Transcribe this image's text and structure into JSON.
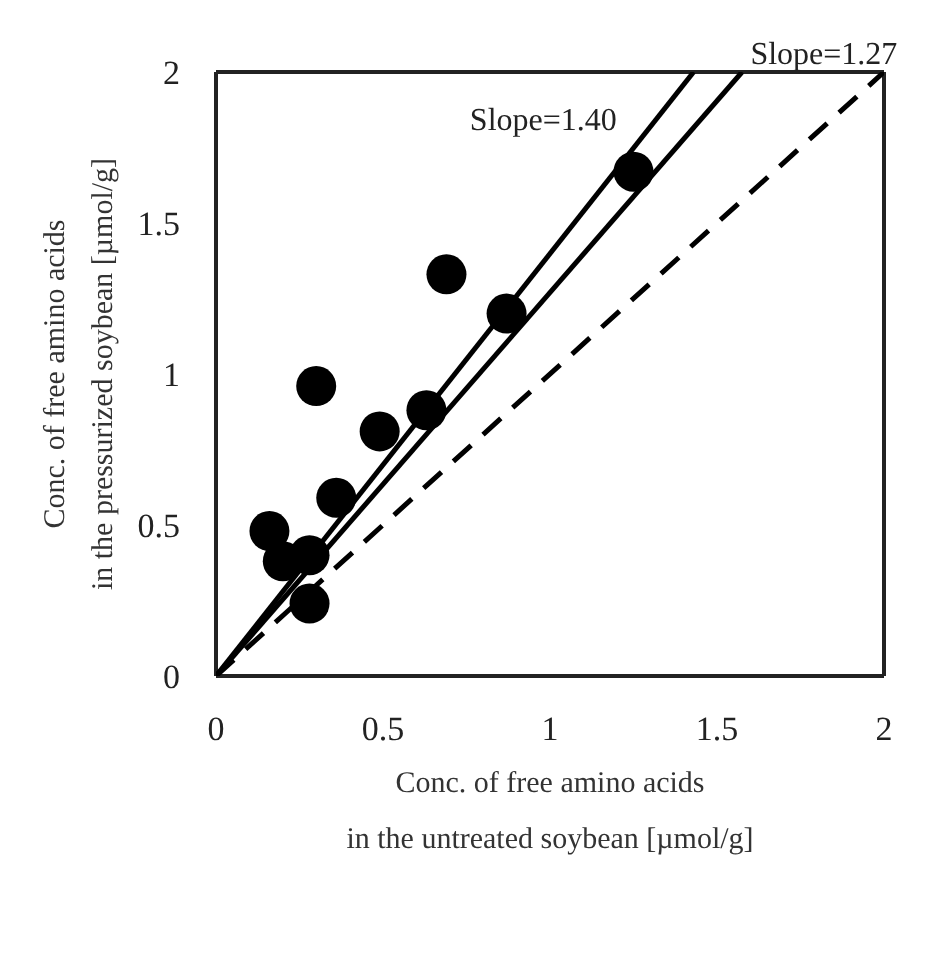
{
  "chart_data": {
    "type": "scatter",
    "xlabel": "Conc. of free amino acids\nin the untreated soybean [µmol/g]",
    "ylabel": "Conc. of free amino acids\nin the pressurized soybean [µmol/g]",
    "xlim": [
      0,
      2
    ],
    "ylim": [
      0,
      2
    ],
    "xticks": [
      0,
      0.5,
      1,
      1.5,
      2
    ],
    "yticks": [
      0,
      0.5,
      1,
      1.5,
      2
    ],
    "legend": false,
    "marker": "circle",
    "series": [
      {
        "color": "#000000",
        "x": [
          1.25,
          0.69,
          0.87,
          0.3,
          0.49,
          0.63,
          0.36,
          0.16,
          0.2,
          0.28,
          0.28
        ],
        "values": [
          1.67,
          1.33,
          1.2,
          0.96,
          0.81,
          0.88,
          0.59,
          0.48,
          0.38,
          0.4,
          0.24
        ]
      },
      {
        "type": "line",
        "color": "#000000",
        "x": [
          0,
          1.43
        ],
        "values": [
          0,
          2
        ],
        "marker": "none",
        "line_style": "solid"
      },
      {
        "type": "line",
        "color": "#000000",
        "x": [
          0,
          1.575
        ],
        "values": [
          0,
          2
        ],
        "marker": "none",
        "line_style": "solid"
      },
      {
        "type": "line",
        "color": "#000000",
        "x": [
          0,
          2
        ],
        "values": [
          0,
          2
        ],
        "marker": "none",
        "line_style": "dashed"
      }
    ],
    "annotations": [
      "Slope=1.40",
      "Slope=1.27"
    ]
  }
}
